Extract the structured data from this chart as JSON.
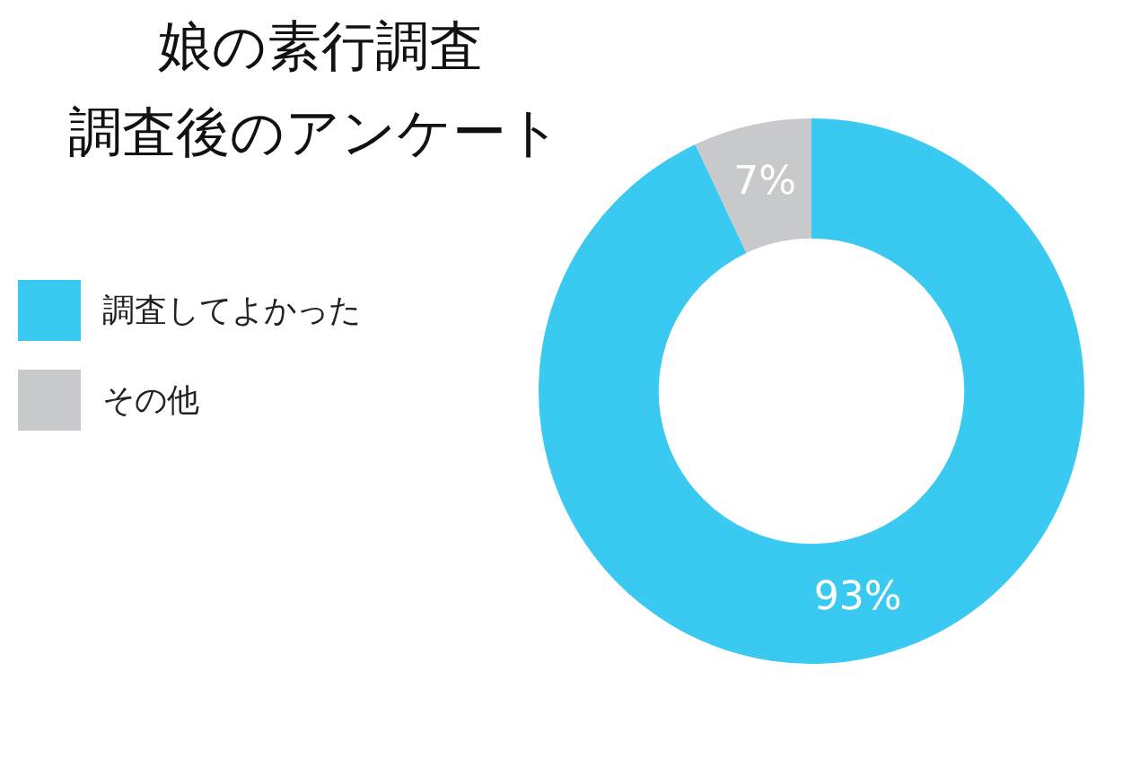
{
  "chart_data": {
    "type": "donut",
    "title": "娘の素行調査",
    "subtitle": "調査後のアンケート",
    "categories": [
      "調査してよかった",
      "その他"
    ],
    "values": [
      93,
      7
    ],
    "colors": [
      "#3ac9f0",
      "#c8c9cc"
    ],
    "value_labels": [
      "93%",
      "7%"
    ],
    "legend": "left"
  }
}
